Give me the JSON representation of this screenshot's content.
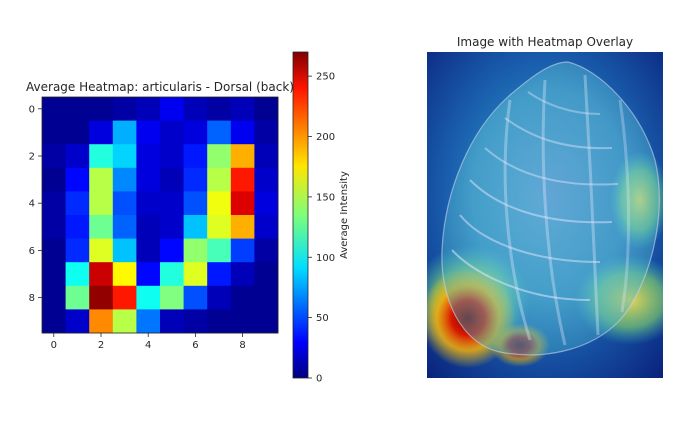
{
  "chart_data": [
    {
      "type": "heatmap",
      "title": "Average Heatmap: articularis - Dorsal (back)",
      "xlabel": "",
      "ylabel": "",
      "x_ticks": [
        "0",
        "2",
        "4",
        "6",
        "8"
      ],
      "y_ticks": [
        "0",
        "2",
        "4",
        "6",
        "8"
      ],
      "colormap": "jet",
      "vmin": 0,
      "vmax": 270,
      "rows": 10,
      "cols": 10,
      "values": [
        [
          5,
          5,
          5,
          10,
          15,
          30,
          15,
          10,
          15,
          5
        ],
        [
          5,
          5,
          25,
          80,
          30,
          20,
          25,
          60,
          30,
          10
        ],
        [
          10,
          20,
          110,
          90,
          25,
          20,
          40,
          140,
          190,
          15
        ],
        [
          5,
          35,
          150,
          70,
          25,
          15,
          45,
          150,
          230,
          20
        ],
        [
          10,
          45,
          150,
          55,
          20,
          20,
          55,
          165,
          245,
          25
        ],
        [
          10,
          40,
          130,
          60,
          15,
          20,
          85,
          160,
          190,
          20
        ],
        [
          5,
          45,
          160,
          85,
          15,
          35,
          140,
          120,
          50,
          10
        ],
        [
          5,
          105,
          250,
          170,
          35,
          110,
          160,
          40,
          15,
          5
        ],
        [
          5,
          130,
          265,
          230,
          105,
          135,
          55,
          15,
          5,
          5
        ],
        [
          5,
          20,
          200,
          150,
          65,
          15,
          10,
          5,
          5,
          5
        ]
      ],
      "colorbar": {
        "label": "Average Intensity",
        "ticks": [
          "0",
          "50",
          "100",
          "150",
          "200",
          "250"
        ]
      }
    },
    {
      "type": "image",
      "title": "Image with Heatmap Overlay"
    }
  ]
}
